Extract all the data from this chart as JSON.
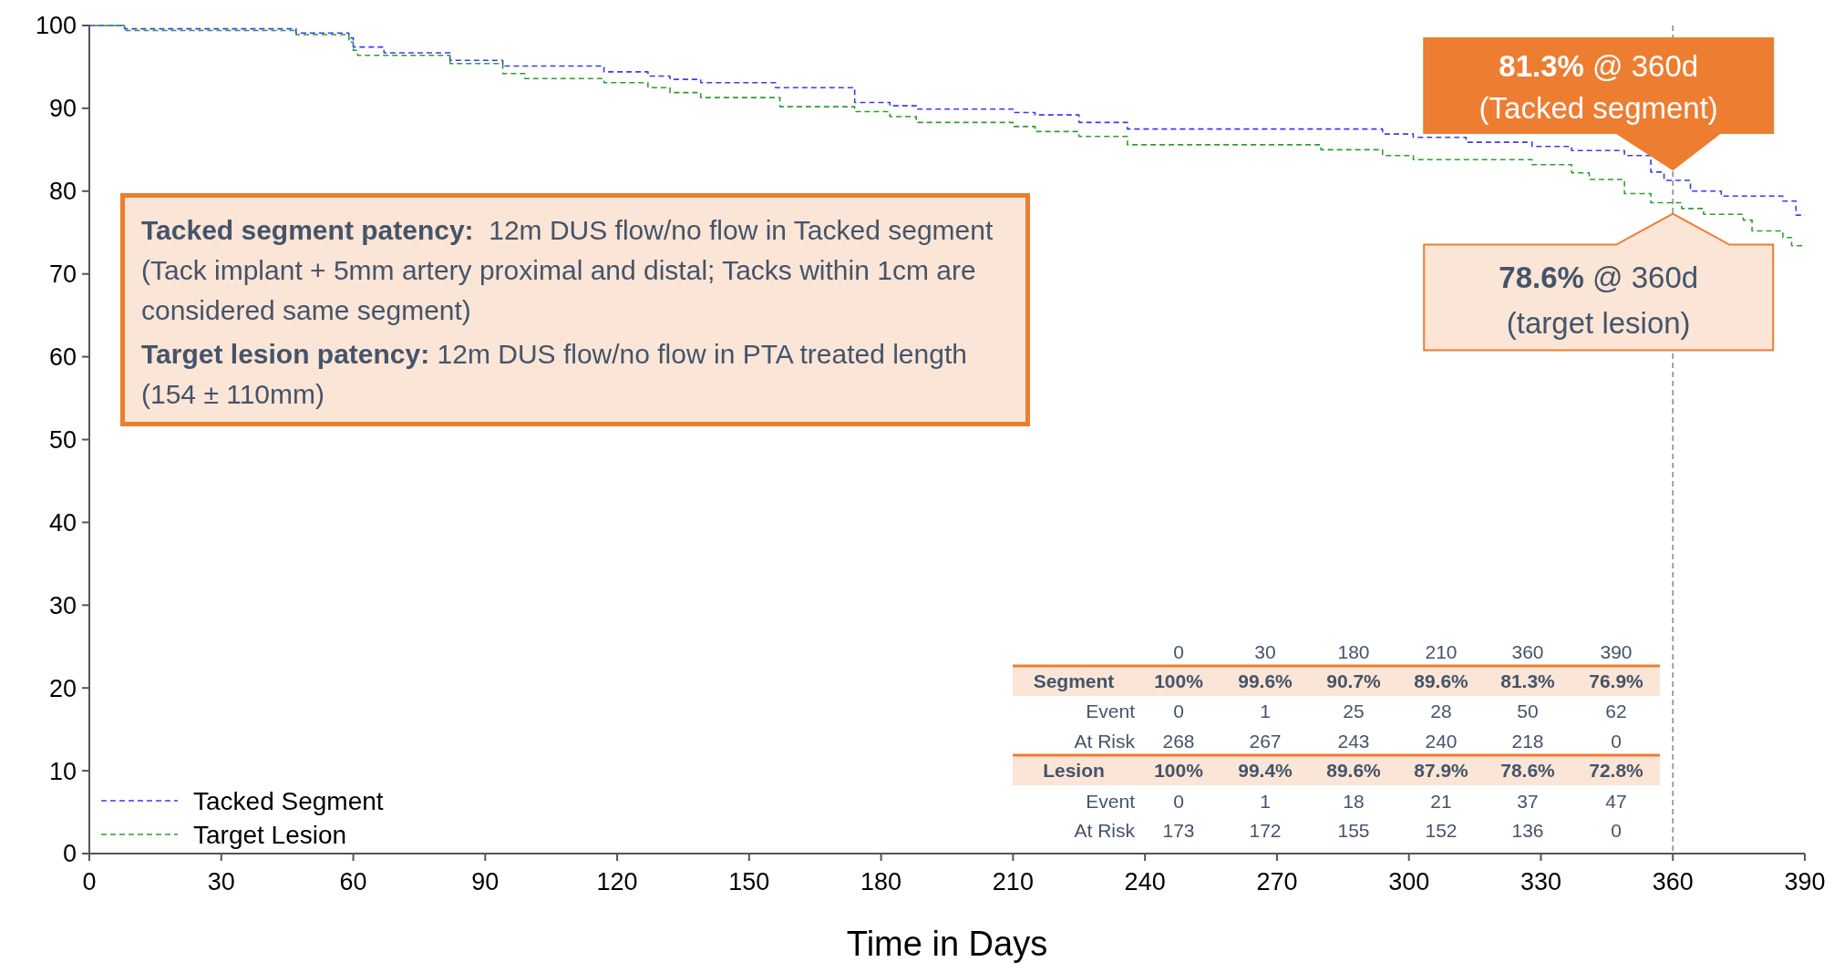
{
  "chart_data": {
    "type": "step",
    "xlabel": "Time in Days",
    "xlim": [
      0,
      390
    ],
    "ylim": [
      0,
      100
    ],
    "xticks": [
      0,
      30,
      60,
      90,
      120,
      150,
      180,
      210,
      240,
      270,
      300,
      330,
      360,
      390
    ],
    "yticks": [
      0,
      10,
      20,
      30,
      40,
      50,
      60,
      70,
      80,
      90,
      100
    ],
    "grid": false,
    "legend": "bottom left",
    "line_style": "dashed",
    "marker": "none",
    "series": [
      {
        "name": "Tacked Segment",
        "color": "#3b3bf5",
        "x": [
          0,
          8,
          47,
          59,
          60,
          67,
          82,
          94,
          117,
          127,
          132,
          139,
          156,
          174,
          182,
          188,
          210,
          215,
          225,
          236,
          294,
          301,
          313,
          328,
          337,
          349,
          355,
          358,
          364,
          371,
          385,
          388,
          390
        ],
        "values": [
          100,
          99.6,
          99.1,
          98.5,
          97.4,
          96.7,
          95.8,
          95.1,
          94.4,
          93.9,
          93.5,
          93.1,
          92.5,
          90.7,
          90.3,
          89.9,
          89.5,
          89.2,
          88.3,
          87.5,
          86.9,
          86.5,
          85.9,
          85.4,
          84.9,
          84.3,
          82.3,
          81.3,
          80,
          79.4,
          78.8,
          77.1,
          77.1
        ]
      },
      {
        "name": "Target Lesion",
        "color": "#2e9e2e",
        "x": [
          0,
          8,
          47,
          59,
          60,
          61,
          82,
          94,
          99,
          117,
          127,
          132,
          139,
          157,
          174,
          182,
          188,
          210,
          215,
          225,
          236,
          280,
          294,
          301,
          328,
          337,
          341,
          349,
          355,
          362,
          367,
          376,
          378,
          385,
          387,
          390
        ],
        "values": [
          100,
          99.4,
          98.9,
          98,
          97,
          96.4,
          95.4,
          94.2,
          93.6,
          93.1,
          92.5,
          91.9,
          91.3,
          90.2,
          89.6,
          89,
          88.3,
          87.8,
          87.2,
          86.6,
          85.6,
          85,
          84.3,
          83.8,
          83.2,
          82.2,
          81.4,
          79.7,
          78.6,
          77.9,
          77.2,
          76.5,
          75.2,
          74.4,
          73.4,
          73.4
        ]
      }
    ],
    "ref_lines": [
      {
        "axis": "x",
        "value": 360,
        "color": "#888888",
        "line_style": "dashed"
      }
    ],
    "annotations": [
      "Tacked segment patency:  12m DUS flow/no flow in Tacked segment (Tack implant + 5mm artery proximal and distal; Tacks within 1cm are considered same segment)",
      "Target lesion patency: 12m DUS flow/no flow in PTA treated length (154 ± 110mm)",
      {
        "text": "81.3% @ 360d (Tacked segment)",
        "x": 360,
        "y": 81.3
      },
      {
        "text": "78.6% @ 360d (target lesion)",
        "x": 360,
        "y": 78.6
      },
      "0",
      "30",
      "180",
      "210",
      "360",
      "390",
      "Segment",
      "100%",
      "99.6%",
      "90.7%",
      "89.6%",
      "81.3%",
      "76.9%",
      "Event",
      "0",
      "1",
      "25",
      "28",
      "50",
      "62",
      "At Risk",
      "268",
      "267",
      "243",
      "240",
      "218",
      "0",
      "Lesion",
      "100%",
      "99.4%",
      "89.6%",
      "87.9%",
      "78.6%",
      "72.8%",
      "Event",
      "0",
      "1",
      "18",
      "21",
      "37",
      "47",
      "At Risk",
      "173",
      "172",
      "155",
      "152",
      "136",
      "0"
    ]
  }
}
